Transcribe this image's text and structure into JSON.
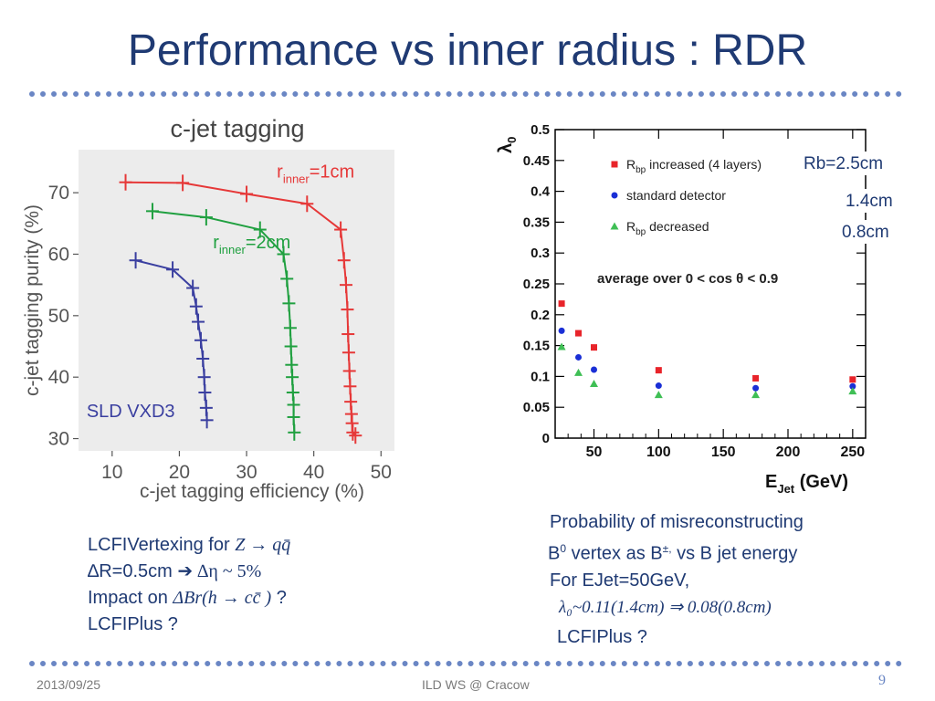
{
  "slide": {
    "title": "Performance vs inner radius : RDR",
    "footer_date": "2013/09/25",
    "footer_event": "ILD WS @ Cracow",
    "page_number": "9"
  },
  "left_notes": {
    "line1_prefix": "LCFIVertexing for ",
    "line1_math": "Z → qq̄",
    "line2_a": "∆R=0.5cm ",
    "line2_arrow": "➔",
    "line2_b": " ∆η ~ 5%",
    "line3_prefix": "Impact on ",
    "line3_math": "ΔBr(h → cc̄ )",
    "line3_suffix": " ?",
    "line4": "LCFIPlus ?"
  },
  "right_notes": {
    "line1": "Probability of misreconstructing",
    "line2_a": "B",
    "line2_sup1": "0",
    "line2_b": " vertex as B",
    "line2_sup2": "±,",
    "line2_c": " vs B jet energy",
    "line3": "For EJet=50GeV,",
    "line4_math": "λ₀~0.11(1.4cm) ⇒ 0.08(0.8cm)",
    "line5": "LCFIPlus ?"
  },
  "chart_data": [
    {
      "type": "line",
      "title": "c-jet tagging",
      "xlabel": "c-jet tagging efficiency (%)",
      "ylabel": "c-jet tagging purity (%)",
      "xlim": [
        5,
        52
      ],
      "ylim": [
        28,
        77
      ],
      "xticks": [
        10,
        20,
        30,
        40,
        50
      ],
      "yticks": [
        30,
        40,
        50,
        60,
        70
      ],
      "grid": false,
      "background": "#ececec",
      "series": [
        {
          "name": "r_inner=1cm",
          "label_main": "r",
          "label_sub": "inner",
          "label_rest": "=1cm",
          "color": "#e63838",
          "points": [
            [
              12,
              71.7
            ],
            [
              20.5,
              71.6
            ],
            [
              30,
              69.8
            ],
            [
              39,
              68.2
            ],
            [
              44,
              64
            ],
            [
              44.5,
              59
            ],
            [
              44.8,
              55
            ],
            [
              45,
              51
            ],
            [
              45.1,
              47
            ],
            [
              45.2,
              44
            ],
            [
              45.3,
              41
            ],
            [
              45.4,
              38.5
            ],
            [
              45.5,
              36
            ],
            [
              45.6,
              34
            ],
            [
              45.7,
              32.5
            ],
            [
              45.8,
              31
            ],
            [
              46.2,
              30.5
            ]
          ]
        },
        {
          "name": "r_inner=2cm",
          "label_main": "r",
          "label_sub": "inner",
          "label_rest": "=2cm",
          "color": "#20a040",
          "points": [
            [
              16,
              67
            ],
            [
              24,
              66
            ],
            [
              32,
              64
            ],
            [
              35.5,
              60
            ],
            [
              36,
              56
            ],
            [
              36.3,
              52
            ],
            [
              36.5,
              48
            ],
            [
              36.6,
              45
            ],
            [
              36.7,
              42
            ],
            [
              36.8,
              40
            ],
            [
              36.9,
              37.5
            ],
            [
              37,
              35.5
            ],
            [
              37,
              33.5
            ],
            [
              37.1,
              31
            ]
          ]
        },
        {
          "name": "SLD VXD3",
          "label_main": "SLD VXD3",
          "label_sub": "",
          "label_rest": "",
          "color": "#3a3fa0",
          "points": [
            [
              13.5,
              59
            ],
            [
              19,
              57.5
            ],
            [
              22,
              54.5
            ],
            [
              22.5,
              51.5
            ],
            [
              22.8,
              49
            ],
            [
              23.2,
              46
            ],
            [
              23.5,
              43
            ],
            [
              23.7,
              40
            ],
            [
              23.8,
              37.5
            ],
            [
              24,
              35
            ],
            [
              24.1,
              33
            ]
          ]
        }
      ]
    },
    {
      "type": "scatter",
      "xlabel": "E_Jet (GeV)",
      "xlabel_main": "E",
      "xlabel_sub": "Jet",
      "xlabel_rest": " (GeV)",
      "ylabel": "λ0",
      "ylabel_main": "λ",
      "ylabel_sub": "0",
      "xlim": [
        20,
        260
      ],
      "ylim": [
        0,
        0.5
      ],
      "xticks": [
        50,
        100,
        150,
        200,
        250
      ],
      "yticks": [
        0,
        0.05,
        0.1,
        0.15,
        0.2,
        0.25,
        0.3,
        0.35,
        0.4,
        0.45,
        0.5
      ],
      "annotation": "average over 0 < cos θ < 0.9",
      "grid": false,
      "series": [
        {
          "name": "R_bp increased (4 layers)",
          "name_main": "R",
          "name_sub": "bp",
          "name_rest": " increased (4 layers)",
          "marker": "square",
          "color": "#e8242a",
          "x": [
            25,
            38,
            50,
            100,
            175,
            250
          ],
          "y": [
            0.218,
            0.17,
            0.147,
            0.11,
            0.097,
            0.095
          ],
          "side_label": "Rb=2.5cm"
        },
        {
          "name": "standard detector",
          "name_main": "standard detector",
          "name_sub": "",
          "name_rest": "",
          "marker": "circle",
          "color": "#1a2fd6",
          "x": [
            25,
            38,
            50,
            100,
            175,
            250
          ],
          "y": [
            0.174,
            0.131,
            0.111,
            0.085,
            0.081,
            0.084
          ],
          "side_label": "1.4cm"
        },
        {
          "name": "R_bp decreased",
          "name_main": "R",
          "name_sub": "bp",
          "name_rest": " decreased",
          "marker": "triangle",
          "color": "#3fbf55",
          "x": [
            25,
            38,
            50,
            100,
            175,
            250
          ],
          "y": [
            0.148,
            0.106,
            0.088,
            0.07,
            0.07,
            0.076
          ],
          "side_label": "0.8cm"
        }
      ]
    }
  ]
}
